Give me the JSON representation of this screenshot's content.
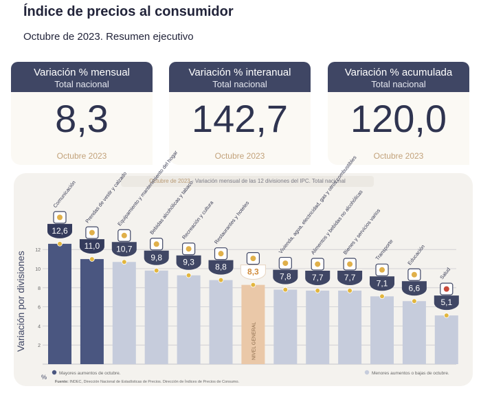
{
  "header": {
    "title": "Índice de precios al consumidor",
    "subtitle": "Octubre de 2023. Resumen ejecutivo"
  },
  "cards": [
    {
      "title": "Variación % mensual",
      "scope": "Total nacional",
      "value": "8,3",
      "date": "Octubre 2023"
    },
    {
      "title": "Variación % interanual",
      "scope": "Total nacional",
      "value": "142,7",
      "date": "Octubre 2023"
    },
    {
      "title": "Variación % acumulada",
      "scope": "Total nacional",
      "value": "120,0",
      "date": "Octubre 2023"
    }
  ],
  "chart_caption": {
    "date": "Octubre de 2023",
    "text": " - Variación mensual de las 12 divisiones del IPC. Total nacional"
  },
  "legend": {
    "high": "Mayores aumentos de octubre.",
    "low": "Menores aumentos o bajas de octubre."
  },
  "source": {
    "label": "Fuente:",
    "text": " INDEC, Dirección Nacional de Estadísticas de Precios. Dirección de Índices de Precios de Consumo."
  },
  "colors": {
    "high": "#4a5680",
    "low": "#c6ccdc",
    "general": "#eac8a8",
    "dot": "#e2b63e",
    "card_head": "#3f4664"
  },
  "chart_data": {
    "type": "bar",
    "ylabel": "Variación por divisiones",
    "yunit": "%",
    "ylim": [
      0,
      14
    ],
    "yticks": [
      2,
      4,
      6,
      8,
      10,
      12
    ],
    "grid": true,
    "categories": [
      "Comunicación",
      "Prendas de vestir y calzado",
      "Equipamiento y mantenimiento del hogar",
      "Bebidas alcohólicas y tabaco",
      "Recreación y cultura",
      "Restaurantes y hoteles",
      "NIVEL GENERAL",
      "Vivienda, agua, electricidad, gas y otros combustibles",
      "Alimentos y bebidas no alcohólicas",
      "Bienes y servicios varios",
      "Transporte",
      "Educación",
      "Salud"
    ],
    "values": [
      12.6,
      11.0,
      10.7,
      9.8,
      9.3,
      8.8,
      8.3,
      7.8,
      7.7,
      7.7,
      7.1,
      6.6,
      5.1
    ],
    "value_labels": [
      "12,6",
      "11,0",
      "10,7",
      "9,8",
      "9,3",
      "8,8",
      "8,3",
      "7,8",
      "7,7",
      "7,7",
      "7,1",
      "6,6",
      "5,1"
    ],
    "groups": [
      "high",
      "high",
      "low",
      "low",
      "low",
      "low",
      "general",
      "low",
      "low",
      "low",
      "low",
      "low",
      "low"
    ],
    "icons": [
      "phone-icon",
      "shirt-icon",
      "washer-icon",
      "bottle-icon",
      "umbrella-icon",
      "cutlery-icon",
      "basket-icon",
      "bulb-icon",
      "food-icon",
      "shoe-icon",
      "bus-icon",
      "book-icon",
      "health-cross-icon"
    ]
  }
}
